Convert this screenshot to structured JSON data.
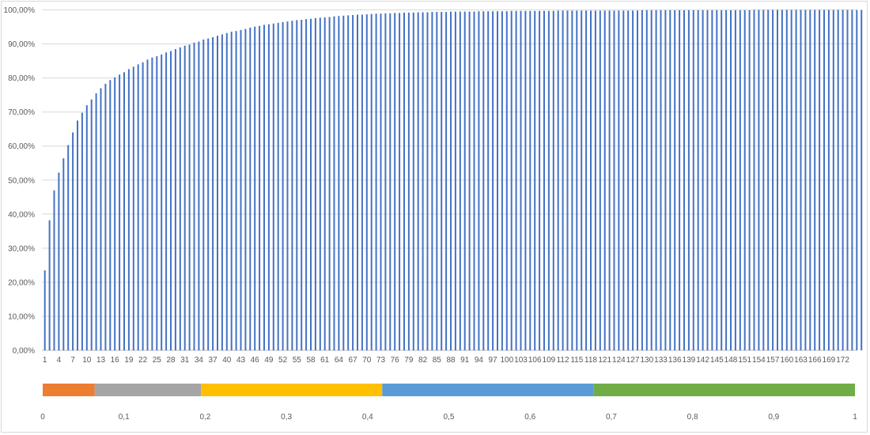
{
  "chart_data": [
    {
      "type": "bar",
      "title": "",
      "xlabel": "",
      "ylabel": "",
      "ylim": [
        0,
        100
      ],
      "y_tick_labels": [
        "0,00%",
        "10,00%",
        "20,00%",
        "30,00%",
        "40,00%",
        "50,00%",
        "60,00%",
        "70,00%",
        "80,00%",
        "90,00%",
        "100,00%"
      ],
      "x_tick_labels": [
        "1",
        "4",
        "7",
        "10",
        "13",
        "16",
        "19",
        "22",
        "25",
        "28",
        "31",
        "34",
        "37",
        "40",
        "43",
        "46",
        "49",
        "52",
        "55",
        "58",
        "61",
        "64",
        "67",
        "70",
        "73",
        "76",
        "79",
        "82",
        "85",
        "88",
        "91",
        "94",
        "97",
        "100",
        "103",
        "106",
        "109",
        "112",
        "115",
        "118",
        "121",
        "124",
        "127",
        "130",
        "133",
        "136",
        "139",
        "142",
        "145",
        "148",
        "151",
        "154",
        "157",
        "160",
        "163",
        "166",
        "169",
        "172"
      ],
      "grid": true,
      "legend": null,
      "bar_color": "#4472C4",
      "categories_count": 174,
      "values": [
        23.5,
        38.2,
        47.0,
        52.2,
        56.4,
        60.3,
        64.0,
        67.5,
        69.8,
        72.0,
        73.7,
        75.5,
        77.0,
        78.3,
        79.4,
        80.2,
        81.0,
        81.7,
        82.6,
        83.3,
        84.0,
        84.6,
        85.4,
        86.0,
        86.4,
        86.9,
        87.5,
        87.9,
        88.5,
        89.0,
        89.5,
        89.8,
        90.4,
        90.7,
        91.3,
        91.6,
        92.0,
        92.4,
        92.8,
        93.2,
        93.6,
        93.8,
        94.1,
        94.4,
        94.8,
        95.1,
        95.3,
        95.6,
        95.8,
        96.0,
        96.2,
        96.4,
        96.6,
        96.8,
        97.0,
        97.1,
        97.3,
        97.4,
        97.6,
        97.7,
        97.8,
        97.9,
        98.1,
        98.2,
        98.3,
        98.4,
        98.5,
        98.6,
        98.6,
        98.7,
        98.8,
        98.9,
        98.9,
        99.0,
        99.0,
        99.1,
        99.1,
        99.2,
        99.2,
        99.2,
        99.3,
        99.3,
        99.3,
        99.4,
        99.4,
        99.4,
        99.4,
        99.5,
        99.5,
        99.5,
        99.5,
        99.5,
        99.5,
        99.6,
        99.6,
        99.6,
        99.6,
        99.6,
        99.6,
        99.6,
        99.7,
        99.7,
        99.7,
        99.7,
        99.7,
        99.7,
        99.7,
        99.7,
        99.7,
        99.7,
        99.8,
        99.8,
        99.8,
        99.8,
        99.8,
        99.8,
        99.8,
        99.8,
        99.8,
        99.8,
        99.8,
        99.8,
        99.8,
        99.8,
        99.8,
        99.8,
        99.8,
        99.8,
        99.9,
        99.9,
        99.9,
        99.9,
        99.9,
        99.9,
        99.9,
        99.9,
        99.9,
        99.9,
        99.9,
        99.9,
        99.9,
        99.9,
        99.9,
        99.9,
        99.9,
        99.9,
        99.9,
        99.9,
        99.9,
        99.9,
        99.9,
        99.9,
        100.0,
        100.0,
        100.0,
        100.0,
        100.0,
        100.0,
        100.0,
        100.0,
        100.0,
        100.0,
        100.0,
        100.0,
        100.0,
        100.0,
        100.0,
        100.0,
        100.0,
        100.0,
        100.0,
        100.0,
        100.0,
        100.0,
        100.0,
        100.0
      ]
    },
    {
      "type": "bar",
      "orientation": "horizontal-stacked",
      "title": "",
      "xlim": [
        0,
        1
      ],
      "x_tick_labels": [
        "0",
        "0,1",
        "0,2",
        "0,3",
        "0,4",
        "0,5",
        "0,6",
        "0,7",
        "0,8",
        "0,9",
        "1"
      ],
      "grid": false,
      "series": [
        {
          "name": "segment-1",
          "start": 0.0,
          "end": 0.064,
          "color": "#ED7D31"
        },
        {
          "name": "segment-2",
          "start": 0.064,
          "end": 0.195,
          "color": "#A5A5A5"
        },
        {
          "name": "segment-3",
          "start": 0.195,
          "end": 0.418,
          "color": "#FFC000"
        },
        {
          "name": "segment-4",
          "start": 0.418,
          "end": 0.678,
          "color": "#5B9BD5"
        },
        {
          "name": "segment-5",
          "start": 0.678,
          "end": 1.0,
          "color": "#70AD47"
        }
      ]
    }
  ]
}
